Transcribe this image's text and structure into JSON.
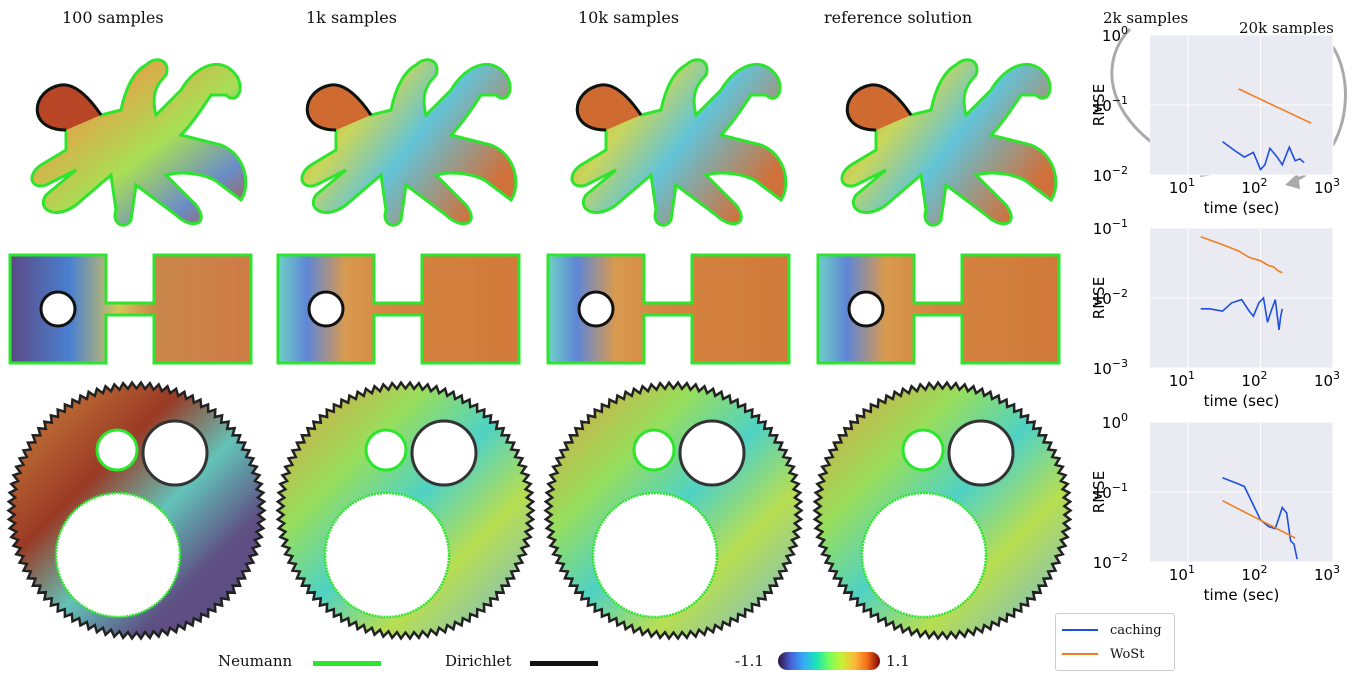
{
  "columns": [
    "100 samples",
    "1k samples",
    "10k samples",
    "reference solution"
  ],
  "annotations": {
    "left": "2k samples",
    "right": "20k samples"
  },
  "bottom_legend": {
    "neumann_label": "Neumann",
    "dirichlet_label": "Dirichlet",
    "neumann_color": "#2ee52e",
    "dirichlet_color": "#111111",
    "colorbar_min": "-1.1",
    "colorbar_max": "1.1"
  },
  "chart_legend": {
    "caching": {
      "label": "caching",
      "color": "#1f4fe0"
    },
    "wost": {
      "label": "WoSt",
      "color": "#f07f22"
    }
  },
  "chart_data": [
    {
      "type": "line",
      "xlabel": "time (sec)",
      "ylabel": "RMSE",
      "xscale": "log",
      "yscale": "log",
      "xlim": [
        3,
        1000
      ],
      "ylim": [
        0.01,
        1
      ],
      "xticks": [
        {
          "v": 10,
          "t": "10",
          "e": "1"
        },
        {
          "v": 100,
          "t": "10",
          "e": "2"
        },
        {
          "v": 1000,
          "t": "10",
          "e": "3"
        }
      ],
      "yticks": [
        {
          "v": 1,
          "t": "10",
          "e": "0"
        },
        {
          "v": 0.1,
          "t": "10",
          "e": "−1"
        },
        {
          "v": 0.01,
          "t": "10",
          "e": "−2"
        }
      ],
      "grid": true,
      "series": [
        {
          "name": "caching",
          "color": "#1f4fe0",
          "x": [
            30,
            45,
            60,
            80,
            100,
            115,
            135,
            170,
            200,
            250,
            300,
            350,
            400
          ],
          "y": [
            0.03,
            0.022,
            0.018,
            0.021,
            0.012,
            0.014,
            0.024,
            0.018,
            0.014,
            0.025,
            0.016,
            0.017,
            0.015
          ]
        },
        {
          "name": "WoSt",
          "color": "#f07f22",
          "x": [
            50,
            500
          ],
          "y": [
            0.17,
            0.055
          ]
        }
      ]
    },
    {
      "type": "line",
      "xlabel": "time (sec)",
      "ylabel": "RMSE",
      "xscale": "log",
      "yscale": "log",
      "xlim": [
        3,
        1000
      ],
      "ylim": [
        0.001,
        0.1
      ],
      "xticks": [
        {
          "v": 10,
          "t": "10",
          "e": "1"
        },
        {
          "v": 100,
          "t": "10",
          "e": "2"
        },
        {
          "v": 1000,
          "t": "10",
          "e": "3"
        }
      ],
      "yticks": [
        {
          "v": 0.1,
          "t": "10",
          "e": "−1"
        },
        {
          "v": 0.01,
          "t": "10",
          "e": "−2"
        },
        {
          "v": 0.001,
          "t": "10",
          "e": "−3"
        }
      ],
      "grid": true,
      "series": [
        {
          "name": "caching",
          "color": "#1f4fe0",
          "x": [
            15,
            20,
            30,
            40,
            55,
            70,
            80,
            95,
            110,
            125,
            140,
            160,
            180,
            190,
            200
          ],
          "y": [
            0.007,
            0.007,
            0.0065,
            0.0085,
            0.0095,
            0.0065,
            0.0055,
            0.0085,
            0.01,
            0.0045,
            0.0065,
            0.0095,
            0.0035,
            0.0055,
            0.007
          ]
        },
        {
          "name": "WoSt",
          "color": "#f07f22",
          "x": [
            15,
            30,
            50,
            70,
            100,
            130,
            150,
            180,
            200
          ],
          "y": [
            0.075,
            0.058,
            0.047,
            0.038,
            0.034,
            0.029,
            0.028,
            0.024,
            0.023
          ]
        }
      ]
    },
    {
      "type": "line",
      "xlabel": "time (sec)",
      "ylabel": "RMSE",
      "xscale": "log",
      "yscale": "log",
      "xlim": [
        3,
        1000
      ],
      "ylim": [
        0.01,
        1
      ],
      "xticks": [
        {
          "v": 10,
          "t": "10",
          "e": "1"
        },
        {
          "v": 100,
          "t": "10",
          "e": "2"
        },
        {
          "v": 1000,
          "t": "10",
          "e": "3"
        }
      ],
      "yticks": [
        {
          "v": 1,
          "t": "10",
          "e": "0"
        },
        {
          "v": 0.1,
          "t": "10",
          "e": "−1"
        },
        {
          "v": 0.01,
          "t": "10",
          "e": "−2"
        }
      ],
      "grid": true,
      "series": [
        {
          "name": "caching",
          "color": "#1f4fe0",
          "x": [
            30,
            50,
            60,
            80,
            100,
            130,
            160,
            200,
            230,
            260,
            290,
            320
          ],
          "y": [
            0.16,
            0.13,
            0.12,
            0.065,
            0.04,
            0.032,
            0.03,
            0.06,
            0.05,
            0.02,
            0.018,
            0.011
          ]
        },
        {
          "name": "WoSt",
          "color": "#f07f22",
          "x": [
            30,
            300
          ],
          "y": [
            0.075,
            0.022
          ]
        }
      ]
    }
  ]
}
